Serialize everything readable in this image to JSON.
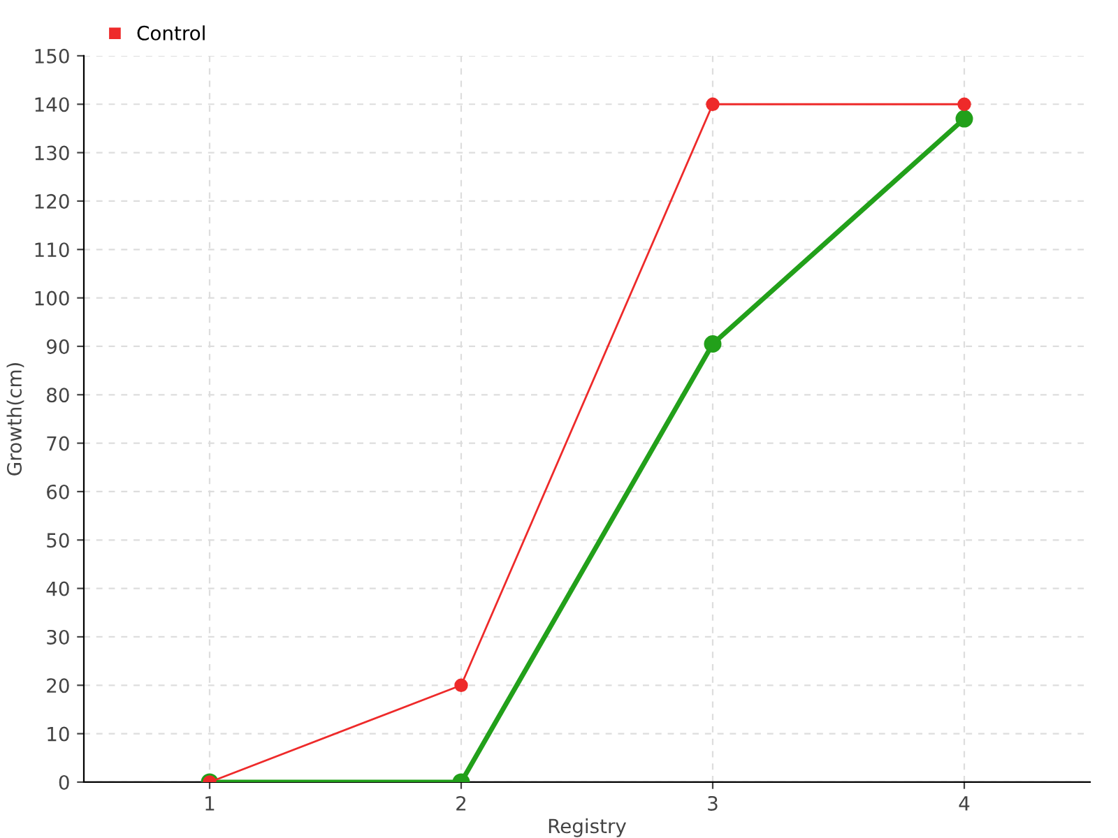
{
  "chart_data": {
    "type": "line",
    "xlabel": "Registry",
    "ylabel": "Growth(cm)",
    "categories": [
      "1",
      "2",
      "3",
      "4"
    ],
    "series": [
      {
        "color": "#22a01a",
        "values": [
          0,
          0,
          90.5,
          137
        ]
      },
      {
        "name": "Control",
        "color": "#ee2a2a",
        "values": [
          0,
          20,
          140,
          140
        ]
      }
    ],
    "ylim": [
      0,
      150
    ],
    "yticks": [
      0,
      10,
      20,
      30,
      40,
      50,
      60,
      70,
      80,
      90,
      100,
      110,
      120,
      130,
      140,
      150
    ],
    "grid": true,
    "legend": "top left",
    "marker": "circle",
    "line_style": "solid"
  }
}
